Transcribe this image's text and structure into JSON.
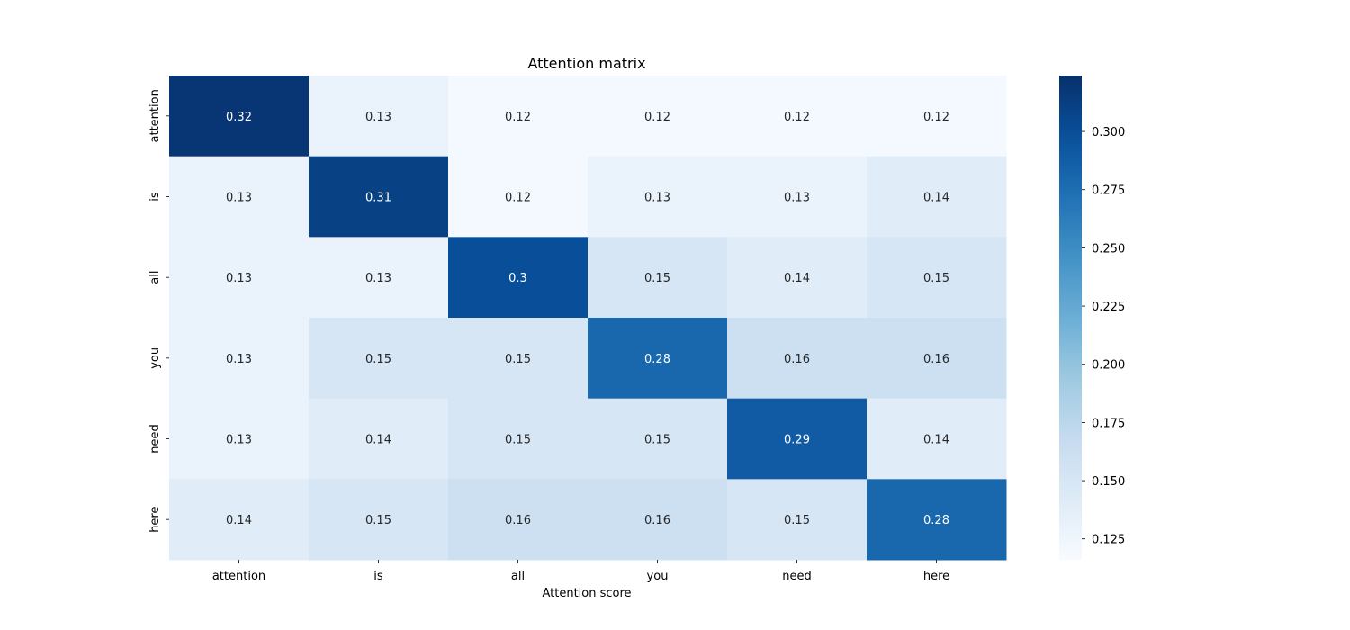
{
  "chart_data": {
    "type": "heatmap",
    "title": "Attention matrix",
    "xlabel": "Attention score",
    "ylabel": "",
    "x_categories": [
      "attention",
      "is",
      "all",
      "you",
      "need",
      "here"
    ],
    "y_categories": [
      "attention",
      "is",
      "all",
      "you",
      "need",
      "here"
    ],
    "values": [
      [
        0.32,
        0.13,
        0.12,
        0.12,
        0.12,
        0.12
      ],
      [
        0.13,
        0.31,
        0.12,
        0.13,
        0.13,
        0.14
      ],
      [
        0.13,
        0.13,
        0.3,
        0.15,
        0.14,
        0.15
      ],
      [
        0.13,
        0.15,
        0.15,
        0.28,
        0.16,
        0.16
      ],
      [
        0.13,
        0.14,
        0.15,
        0.15,
        0.29,
        0.14
      ],
      [
        0.14,
        0.15,
        0.16,
        0.16,
        0.15,
        0.28
      ]
    ],
    "colormap": "Blues",
    "color_range": [
      0.116,
      0.324
    ],
    "colorbar_ticks": [
      0.125,
      0.15,
      0.175,
      0.2,
      0.225,
      0.25,
      0.275,
      0.3
    ],
    "colorbar_tick_labels": [
      "0.125",
      "0.150",
      "0.175",
      "0.200",
      "0.225",
      "0.250",
      "0.275",
      "0.300"
    ],
    "annotations": true,
    "grid": false
  }
}
